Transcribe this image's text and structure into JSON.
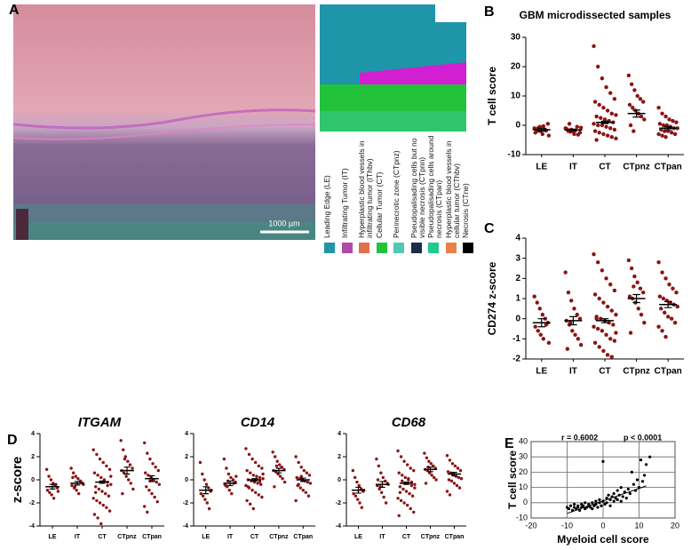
{
  "panel_labels": [
    "A",
    "B",
    "C",
    "D",
    "E"
  ],
  "figure_a": {
    "scale_bar": "1000 µm",
    "legend": [
      {
        "label": "Leading Edge (LE)",
        "color": "#1f96aa"
      },
      {
        "label": "Infiltrating Tumor (IT)",
        "color": "#b14aa8"
      },
      {
        "label": "Hyperplastic blood vessels in infiltrating tumor (IThbv)",
        "color": "#e0704e"
      },
      {
        "label": "Cellular Tumor (CT)",
        "color": "#22c33a"
      },
      {
        "label": "Perinecrotic zone (CTpnz)",
        "color": "#52c8b2"
      },
      {
        "label": "Pseudopalisading cells but no visible necrosis (CTpnn)",
        "color": "#1c2b4c"
      },
      {
        "label": "Pseudopalisading cells around necrosis (CTpan)",
        "color": "#22c98c"
      },
      {
        "label": "Hyperplastic blood vessels in cellular tumor (CThbv)",
        "color": "#e8824a"
      },
      {
        "label": "Necrosis (CTne)",
        "color": "#000000"
      }
    ]
  },
  "chart_data": [
    {
      "type": "strip",
      "title": "GBM microdissected samples",
      "y_label": "T cell score",
      "color": "#8b1414",
      "categories": [
        "LE",
        "IT",
        "CT",
        "CTpnz",
        "CTpan"
      ],
      "values": [
        [
          -1,
          -2,
          -0.5,
          -3,
          -1.5,
          0.5,
          -2.5,
          -1,
          -2,
          -0.3,
          -1.8,
          -3.5
        ],
        [
          -1,
          -2,
          -1.5,
          -3,
          -0.5,
          -2.5,
          -1.2,
          0.5,
          -2,
          -1.8,
          -3.2,
          -0.8,
          -1.5,
          -2.2
        ],
        [
          27,
          20,
          16,
          13,
          11,
          9,
          8,
          7,
          6,
          5,
          4,
          3.5,
          3,
          2.5,
          2,
          1.5,
          1,
          0.5,
          0,
          0,
          -0.5,
          -1,
          -1.5,
          -2,
          -2.5,
          -3,
          -3.5,
          -4,
          -4.5,
          -5
        ],
        [
          17,
          14,
          12,
          10,
          9,
          8,
          7,
          6,
          5,
          4,
          3,
          2,
          0,
          -2
        ],
        [
          6,
          4,
          3,
          2,
          1.5,
          1,
          0.5,
          0,
          0,
          -0.5,
          -1,
          -1,
          -1.5,
          -2,
          -2,
          -2.5,
          -3,
          -3,
          -3.5,
          -4
        ]
      ],
      "means": [
        -1.5,
        -1.6,
        1,
        4,
        -1
      ],
      "sems": [
        0.5,
        0.3,
        0.4,
        1.2,
        0.5
      ],
      "ylim": [
        -10,
        30
      ],
      "yticks": [
        -10,
        0,
        10,
        20,
        30
      ]
    },
    {
      "type": "strip",
      "y_label": "CD274 z-score",
      "color": "#8b1414",
      "categories": [
        "LE",
        "IT",
        "CT",
        "CTpnz",
        "CTpan"
      ],
      "values": [
        [
          1.1,
          0.8,
          0.5,
          0.2,
          0,
          -0.2,
          -0.4,
          -0.6,
          -0.8,
          -1,
          -0.3,
          -1.2
        ],
        [
          2.3,
          1.3,
          0.9,
          0.5,
          0.2,
          0,
          -0.1,
          -0.3,
          -0.6,
          -0.8,
          -1,
          -1.3,
          -1.5,
          -0.2
        ],
        [
          3.2,
          2.8,
          2.4,
          2,
          1.7,
          1.4,
          1.2,
          1,
          0.8,
          0.6,
          0.4,
          0.2,
          0,
          0,
          -0.1,
          -0.2,
          -0.3,
          -0.4,
          -0.5,
          -0.6,
          -0.8,
          -1,
          -1.1,
          -1.2,
          -1.4,
          -1.6,
          -1.8,
          -1.9,
          -0.7,
          0.1
        ],
        [
          2.9,
          2.5,
          2.1,
          1.8,
          1.5,
          1.3,
          1.1,
          1,
          0.8,
          0.5,
          0.2,
          -0.2,
          -0.7,
          1.6
        ],
        [
          2.8,
          2.3,
          2,
          1.7,
          1.5,
          1.3,
          1.1,
          1,
          0.9,
          0.8,
          0.7,
          0.6,
          0.5,
          0.3,
          0.1,
          0,
          -0.2,
          -0.4,
          -0.6,
          -0.9
        ]
      ],
      "means": [
        -0.2,
        -0.1,
        -0.1,
        1,
        0.7
      ],
      "sems": [
        0.2,
        0.2,
        0.1,
        0.2,
        0.15
      ],
      "ylim": [
        -2,
        4
      ],
      "yticks": [
        -2,
        -1,
        0,
        1,
        2,
        3,
        4
      ]
    },
    {
      "type": "strip",
      "title": "ITGAM",
      "y_label": "z-score",
      "color": "#8b1414",
      "categories": [
        "LE",
        "IT",
        "CT",
        "CTpnz",
        "CTpan"
      ],
      "values": [
        [
          0.9,
          0.3,
          0,
          -0.3,
          -0.5,
          -0.7,
          -0.9,
          -1.1,
          -1.3,
          -1.6,
          -0.4,
          -1
        ],
        [
          1,
          0.6,
          0.3,
          0.1,
          -0.1,
          -0.3,
          -0.5,
          -0.7,
          -0.9,
          -1.2,
          -0.2,
          -0.4,
          0.2,
          -0.6
        ],
        [
          2.6,
          2.2,
          1.8,
          1.5,
          1.2,
          0.9,
          0.6,
          0.4,
          0.2,
          0,
          -0.2,
          -0.4,
          -0.6,
          -0.8,
          -1,
          -1.2,
          -1.4,
          -1.6,
          -1.8,
          -2,
          -2.2,
          -2.4,
          -2.7,
          -3,
          -3.3,
          -3.8,
          -0.1,
          -0.5,
          0.3,
          -1.1
        ],
        [
          3.4,
          2.6,
          2,
          1.6,
          1.3,
          1,
          0.8,
          0.6,
          0.3,
          0,
          -0.3,
          -0.8,
          -1.2,
          1.8
        ],
        [
          3.2,
          2.3,
          1.8,
          1.4,
          1.1,
          0.8,
          0.6,
          0.4,
          0.2,
          0,
          -0.2,
          -0.4,
          -0.6,
          -0.9,
          -1.2,
          -1.5,
          -1.9,
          -2.3,
          -2.8,
          -0.1
        ]
      ],
      "means": [
        -0.6,
        -0.3,
        -0.2,
        0.8,
        0.1
      ],
      "sems": [
        0.2,
        0.15,
        0.1,
        0.3,
        0.25
      ],
      "ylim": [
        -4,
        4
      ],
      "yticks": [
        -4,
        -2,
        0,
        2,
        4
      ]
    },
    {
      "type": "strip",
      "title": "CD14",
      "color": "#8b1414",
      "categories": [
        "LE",
        "IT",
        "CT",
        "CTpnz",
        "CTpan"
      ],
      "values": [
        [
          1.5,
          0.5,
          0,
          -0.4,
          -0.7,
          -1,
          -1.2,
          -1.4,
          -1.7,
          -2,
          -2.5,
          -0.9
        ],
        [
          1.8,
          1,
          0.5,
          0.2,
          0,
          -0.2,
          -0.4,
          -0.6,
          -0.9,
          -1.2,
          -0.3,
          0.3,
          -0.5,
          -0.1
        ],
        [
          2.7,
          2.2,
          1.8,
          1.5,
          1.2,
          1,
          0.8,
          0.6,
          0.4,
          0.3,
          0.2,
          0.1,
          0,
          -0.1,
          -0.2,
          -0.3,
          -0.4,
          -0.5,
          -0.7,
          -0.9,
          -1.1,
          -1.3,
          -1.5,
          -1.8,
          -2.1,
          -2.5,
          0.05,
          -0.15,
          0.5,
          -0.6
        ],
        [
          2.4,
          2,
          1.6,
          1.3,
          1.1,
          0.9,
          0.8,
          0.7,
          0.5,
          0.3,
          0.1,
          -0.2,
          -0.6,
          1.2
        ],
        [
          2,
          1.5,
          1.1,
          0.8,
          0.6,
          0.4,
          0.2,
          0.1,
          0,
          -0.1,
          -0.2,
          -0.3,
          -0.5,
          -0.7,
          -0.9,
          -1.1,
          -1.4,
          -1.8,
          -0.4,
          0.3
        ]
      ],
      "means": [
        -0.9,
        -0.3,
        0,
        0.8,
        0
      ],
      "sems": [
        0.3,
        0.2,
        0.1,
        0.2,
        0.15
      ],
      "ylim": [
        -4,
        4
      ],
      "yticks": [
        -4,
        -2,
        0,
        2,
        4
      ]
    },
    {
      "type": "strip",
      "title": "CD68",
      "color": "#8b1414",
      "categories": [
        "LE",
        "IT",
        "CT",
        "CTpnz",
        "CTpan"
      ],
      "values": [
        [
          0.8,
          0.2,
          -0.2,
          -0.5,
          -0.8,
          -1,
          -1.2,
          -1.4,
          -1.7,
          -2,
          -2.4,
          -0.9
        ],
        [
          1.8,
          1.2,
          0.6,
          0.2,
          -0.1,
          -0.3,
          -0.5,
          -0.8,
          -1.1,
          -1.5,
          -2,
          -0.4,
          0,
          -0.6
        ],
        [
          2.5,
          2,
          1.6,
          1.3,
          1,
          0.8,
          0.6,
          0.4,
          0.2,
          0,
          -0.2,
          -0.4,
          -0.6,
          -0.8,
          -1,
          -1.2,
          -1.4,
          -1.6,
          -1.8,
          -2,
          -2.2,
          -2.5,
          -2.8,
          -3.1,
          -0.1,
          -0.3,
          0.1,
          -0.5,
          -0.7,
          -1.1
        ],
        [
          2.3,
          1.9,
          1.6,
          1.4,
          1.2,
          1,
          0.9,
          0.8,
          0.6,
          0.4,
          0.2,
          0,
          -0.3,
          1.1
        ],
        [
          2.1,
          1.7,
          1.4,
          1.2,
          1,
          0.8,
          0.7,
          0.6,
          0.4,
          0.3,
          0.2,
          0.1,
          0,
          -0.1,
          -0.3,
          -0.5,
          -0.7,
          -1,
          -1.3,
          0.5
        ]
      ],
      "means": [
        -0.9,
        -0.4,
        -0.3,
        0.9,
        0.5
      ],
      "sems": [
        0.25,
        0.25,
        0.1,
        0.2,
        0.15
      ],
      "ylim": [
        -4,
        4
      ],
      "yticks": [
        -4,
        -2,
        0,
        2,
        4
      ]
    },
    {
      "type": "scatter",
      "x_label": "Myeloid cell score",
      "y_label": "T cell score",
      "color": "#000000",
      "grid": true,
      "annotations": [
        "r = 0.6002",
        "p < 0.0001"
      ],
      "x": [
        -10,
        -9.5,
        -9,
        -8.5,
        -8,
        -8,
        -7.5,
        -7,
        -7,
        -6.5,
        -6,
        -6,
        -5.5,
        -5,
        -5,
        -4.5,
        -4,
        -4,
        -3.5,
        -3,
        -3,
        -2.5,
        -2,
        -2,
        -1.5,
        -1,
        -1,
        -0.5,
        0,
        0,
        0.5,
        1,
        1,
        1.5,
        2,
        2,
        2.5,
        3,
        3,
        3.5,
        4,
        4,
        4.5,
        5,
        5,
        5.5,
        6,
        6.5,
        7,
        7.5,
        8,
        8.5,
        9,
        9.5,
        10,
        10.5,
        11,
        11.5,
        12,
        13
      ],
      "y": [
        -3,
        -4,
        -2,
        -5,
        -3,
        -1,
        -4,
        -2,
        -3,
        -5,
        -1,
        -3,
        -2,
        -4,
        0,
        -3,
        -1,
        -2,
        -3,
        0,
        -4,
        -2,
        1,
        -1,
        -3,
        2,
        0,
        -2,
        1,
        27,
        -1,
        3,
        0,
        5,
        2,
        -2,
        4,
        1,
        6,
        3,
        2,
        8,
        5,
        1,
        10,
        4,
        7,
        3,
        9,
        6,
        20,
        12,
        8,
        15,
        10,
        28,
        14,
        18,
        25,
        30
      ],
      "fit": {
        "x": [
          -10,
          12
        ],
        "y": [
          -7,
          11
        ]
      },
      "xlim": [
        -20,
        20
      ],
      "xticks": [
        -20,
        -10,
        0,
        10,
        20
      ],
      "ylim": [
        -10,
        40
      ],
      "yticks": [
        -10,
        0,
        10,
        20,
        30,
        40
      ]
    }
  ]
}
